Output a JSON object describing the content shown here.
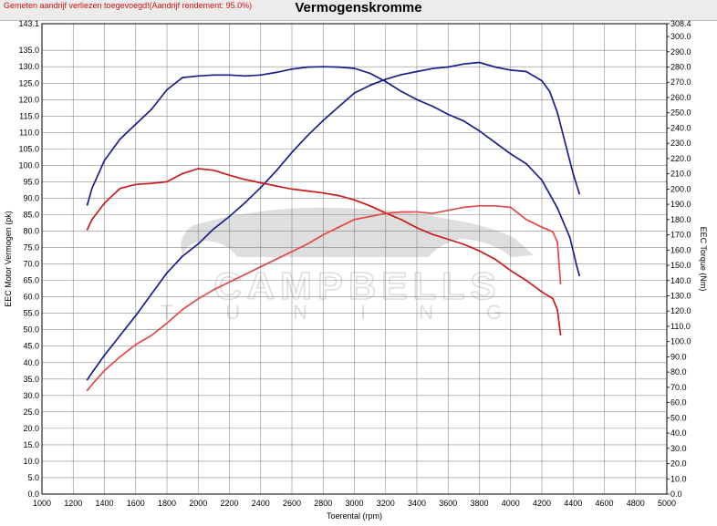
{
  "header": {
    "note": "Gemeten aandrijf verliezen toegevoegd!(Aandrijf rendement: 95.0%)",
    "title": "Vermogenskromme"
  },
  "watermark": {
    "brand": "CAMPBELLS",
    "sub": "TUNING"
  },
  "colors": {
    "power_measured": "#1a1f8c",
    "power_stock": "#cc1a1a",
    "torque_measured": "#1a1f8c",
    "torque_stock": "#e24a4a",
    "grid": "#8a8a8a"
  },
  "chart_data": {
    "type": "line",
    "title": "Vermogenskromme",
    "xlabel": "Toerental (rpm)",
    "ylabel": "EEC Motor Vermogen (pk)",
    "y2label": "EEC Torque (Nm)",
    "xlim": [
      1000,
      5000
    ],
    "ylim": [
      0,
      143.1
    ],
    "y2lim": [
      0,
      308.4
    ],
    "xticks": [
      "1000",
      "1200",
      "1400",
      "1600",
      "1800",
      "2000",
      "2200",
      "2400",
      "2600",
      "2800",
      "3000",
      "3200",
      "3400",
      "3600",
      "3800",
      "4000",
      "4200",
      "4400",
      "4600",
      "4800",
      "5000"
    ],
    "yticks": [
      "143.1",
      "135.0",
      "130.0",
      "125.0",
      "120.0",
      "115.0",
      "110.0",
      "105.0",
      "100.0",
      "95.0",
      "90.0",
      "85.0",
      "80.0",
      "75.0",
      "70.0",
      "65.0",
      "60.0",
      "55.0",
      "50.0",
      "45.0",
      "40.0",
      "35.0",
      "30.0",
      "25.0",
      "20.0",
      "15.0",
      "10.0",
      "5.0",
      "0.0"
    ],
    "y2ticks": [
      "308.4",
      "300.0",
      "290.0",
      "280.0",
      "270.0",
      "260.0",
      "250.0",
      "240.0",
      "230.0",
      "220.0",
      "210.0",
      "200.0",
      "190.0",
      "180.0",
      "170.0",
      "160.0",
      "150.0",
      "140.0",
      "130.0",
      "120.0",
      "110.0",
      "100.0",
      "90.0",
      "80.0",
      "70.0",
      "60.0",
      "50.0",
      "40.0",
      "30.0",
      "20.0",
      "10.0",
      "0.0"
    ],
    "grid": true,
    "series": [
      {
        "axis": "left",
        "role": "power_measured",
        "x": [
          1290,
          1320,
          1400,
          1500,
          1600,
          1700,
          1800,
          1900,
          2000,
          2100,
          2200,
          2300,
          2400,
          2500,
          2600,
          2700,
          2800,
          2900,
          3000,
          3100,
          3200,
          3300,
          3400,
          3500,
          3600,
          3700,
          3800,
          3900,
          4000,
          4100,
          4200,
          4300,
          4380,
          4420,
          4440
        ],
        "y": [
          88.0,
          93.0,
          101.5,
          108.0,
          112.5,
          117.0,
          123.0,
          126.7,
          127.2,
          127.5,
          127.5,
          127.2,
          127.5,
          128.3,
          129.3,
          129.9,
          130.0,
          129.9,
          129.5,
          128.0,
          125.5,
          122.5,
          120.0,
          118.0,
          115.5,
          113.5,
          110.5,
          107.0,
          103.5,
          100.5,
          95.5,
          87.0,
          78.0,
          70.0,
          66.5
        ]
      },
      {
        "axis": "right",
        "role": "torque_measured",
        "x": [
          1290,
          1330,
          1400,
          1500,
          1600,
          1700,
          1800,
          1900,
          2000,
          2100,
          2200,
          2300,
          2400,
          2500,
          2600,
          2700,
          2800,
          2900,
          3000,
          3100,
          3200,
          3300,
          3400,
          3500,
          3600,
          3700,
          3800,
          3900,
          4000,
          4100,
          4200,
          4250,
          4300,
          4350,
          4400,
          4440
        ],
        "y": [
          75,
          81,
          91,
          104,
          117,
          131,
          145,
          156,
          164,
          174,
          182,
          191,
          201,
          212,
          224,
          235,
          245,
          254,
          263,
          268,
          272,
          275,
          277,
          279,
          280,
          282,
          283,
          280,
          278,
          277,
          271,
          264,
          250,
          230,
          210,
          197
        ]
      },
      {
        "axis": "left",
        "role": "power_stock",
        "x": [
          1290,
          1320,
          1400,
          1500,
          1600,
          1700,
          1800,
          1900,
          2000,
          2100,
          2200,
          2300,
          2400,
          2500,
          2600,
          2700,
          2800,
          2900,
          3000,
          3100,
          3200,
          3300,
          3400,
          3500,
          3600,
          3700,
          3800,
          3900,
          4000,
          4100,
          4200,
          4270,
          4300,
          4320
        ],
        "y": [
          80.5,
          83.5,
          88.5,
          93.0,
          94.2,
          94.5,
          95.0,
          97.5,
          99.0,
          98.5,
          97.0,
          95.7,
          94.7,
          93.7,
          92.8,
          92.2,
          91.6,
          90.8,
          89.5,
          87.7,
          85.5,
          83.5,
          81.0,
          79.0,
          77.5,
          76.0,
          74.0,
          71.5,
          68.0,
          65.0,
          61.5,
          59.5,
          56.0,
          48.5
        ]
      },
      {
        "axis": "right",
        "role": "torque_stock",
        "x": [
          1290,
          1330,
          1400,
          1500,
          1600,
          1700,
          1800,
          1900,
          2000,
          2100,
          2200,
          2300,
          2400,
          2500,
          2600,
          2700,
          2800,
          2900,
          3000,
          3100,
          3200,
          3300,
          3400,
          3500,
          3600,
          3700,
          3800,
          3900,
          4000,
          4100,
          4200,
          4270,
          4300,
          4320
        ],
        "y": [
          68,
          73,
          81,
          90,
          98,
          104,
          112,
          121,
          128,
          134,
          139,
          144,
          149,
          154,
          159,
          164,
          170,
          175,
          180,
          182,
          184,
          185,
          185,
          184,
          186,
          188,
          189,
          189,
          188,
          180,
          175,
          172,
          165,
          138
        ]
      }
    ]
  }
}
